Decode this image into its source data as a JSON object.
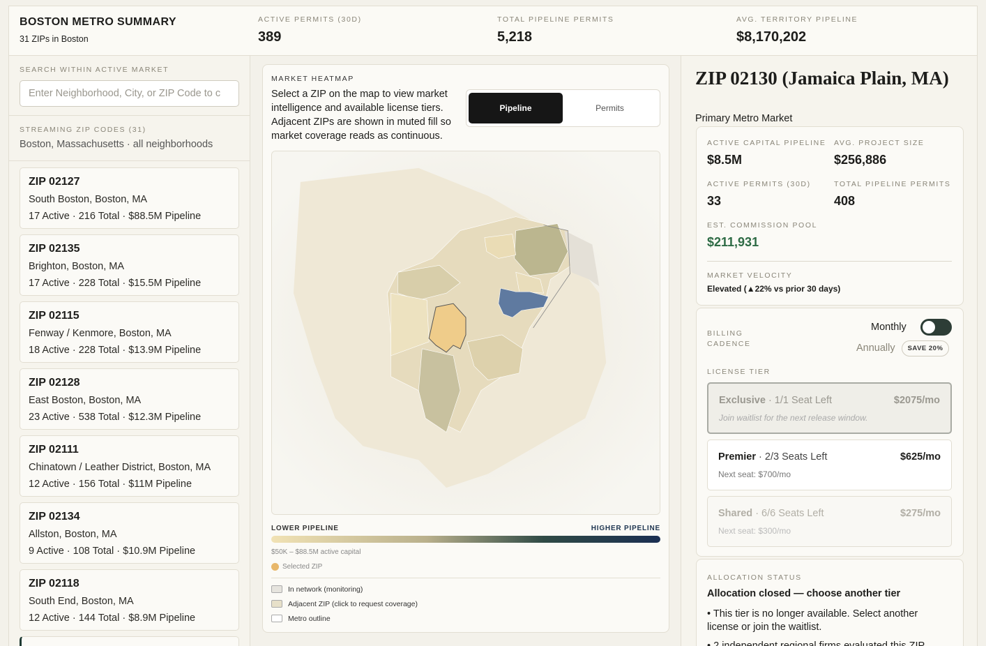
{
  "header": {
    "title": "BOSTON METRO SUMMARY",
    "subtitle": "31 ZIPs in Boston",
    "stats": [
      {
        "label": "ACTIVE PERMITS (30D)",
        "value": "389"
      },
      {
        "label": "TOTAL PIPELINE PERMITS",
        "value": "5,218"
      },
      {
        "label": "AVG. TERRITORY PIPELINE",
        "value": "$8,170,202"
      }
    ]
  },
  "search": {
    "label": "SEARCH WITHIN ACTIVE MARKET",
    "placeholder": "Enter Neighborhood, City, or ZIP Code to c"
  },
  "streaming": {
    "label": "STREAMING ZIP CODES (31)",
    "description": "Boston, Massachusetts · all neighborhoods"
  },
  "zip_list": [
    {
      "title": "ZIP 02127",
      "location": "South Boston, Boston, MA",
      "stats": "17 Active · 216 Total · $88.5M Pipeline"
    },
    {
      "title": "ZIP 02135",
      "location": "Brighton, Boston, MA",
      "stats": "17 Active · 228 Total · $15.5M Pipeline"
    },
    {
      "title": "ZIP 02115",
      "location": "Fenway / Kenmore, Boston, MA",
      "stats": "18 Active · 228 Total · $13.9M Pipeline"
    },
    {
      "title": "ZIP 02128",
      "location": "East Boston, Boston, MA",
      "stats": "23 Active · 538 Total · $12.3M Pipeline"
    },
    {
      "title": "ZIP 02111",
      "location": "Chinatown / Leather District, Boston, MA",
      "stats": "12 Active · 156 Total · $11M Pipeline"
    },
    {
      "title": "ZIP 02134",
      "location": "Allston, Boston, MA",
      "stats": "9 Active · 108 Total · $10.9M Pipeline"
    },
    {
      "title": "ZIP 02118",
      "location": "South End, Boston, MA",
      "stats": "12 Active · 144 Total · $8.9M Pipeline"
    }
  ],
  "heatmap": {
    "label": "MARKET HEATMAP",
    "description": "Select a ZIP on the map to view market intelligence and available license tiers. Adjacent ZIPs are shown in muted fill so market coverage reads as continuous.",
    "toggle": [
      "Pipeline",
      "Permits"
    ],
    "legend": {
      "low": "LOWER PIPELINE",
      "high": "HIGHER PIPELINE",
      "range": "$50K – $88.5M active capital",
      "selected": "Selected ZIP",
      "items": [
        "In network (monitoring)",
        "Adjacent ZIP (click to request coverage)",
        "Metro outline"
      ]
    }
  },
  "detail": {
    "title": "ZIP 02130 (Jamaica Plain, MA)",
    "subtitle": "Primary Metro Market",
    "stats": [
      {
        "label": "ACTIVE CAPITAL PIPELINE",
        "value": "$8.5M"
      },
      {
        "label": "AVG. PROJECT SIZE",
        "value": "$256,886"
      },
      {
        "label": "ACTIVE PERMITS (30D)",
        "value": "33"
      },
      {
        "label": "TOTAL PIPELINE PERMITS",
        "value": "408"
      },
      {
        "label": "EST. COMMISSION POOL",
        "value": "$211,931"
      }
    ],
    "velocity": {
      "label": "MARKET VELOCITY",
      "value": "Elevated (▲22% vs prior 30 days)"
    },
    "billing": {
      "label": "BILLING CADENCE",
      "monthly": "Monthly",
      "annually": "Annually",
      "badge": "SAVE 20%"
    },
    "tier_label": "LICENSE TIER",
    "tiers": [
      {
        "name": "Exclusive",
        "seats": " · 1/1 Seat Left",
        "price": "$2075/mo",
        "note": "Join waitlist for the next release window."
      },
      {
        "name": "Premier",
        "seats": " · 2/3 Seats Left",
        "price": "$625/mo",
        "note": "Next seat: $700/mo"
      },
      {
        "name": "Shared",
        "seats": " · 6/6 Seats Left",
        "price": "$275/mo",
        "note": "Next seat: $300/mo"
      }
    ],
    "allocation": {
      "label": "ALLOCATION STATUS",
      "title": "Allocation closed — choose another tier",
      "bullets": [
        "• This tier is no longer available. Select another license or join the waitlist.",
        "• 2 independent regional firms evaluated this ZIP"
      ]
    }
  }
}
